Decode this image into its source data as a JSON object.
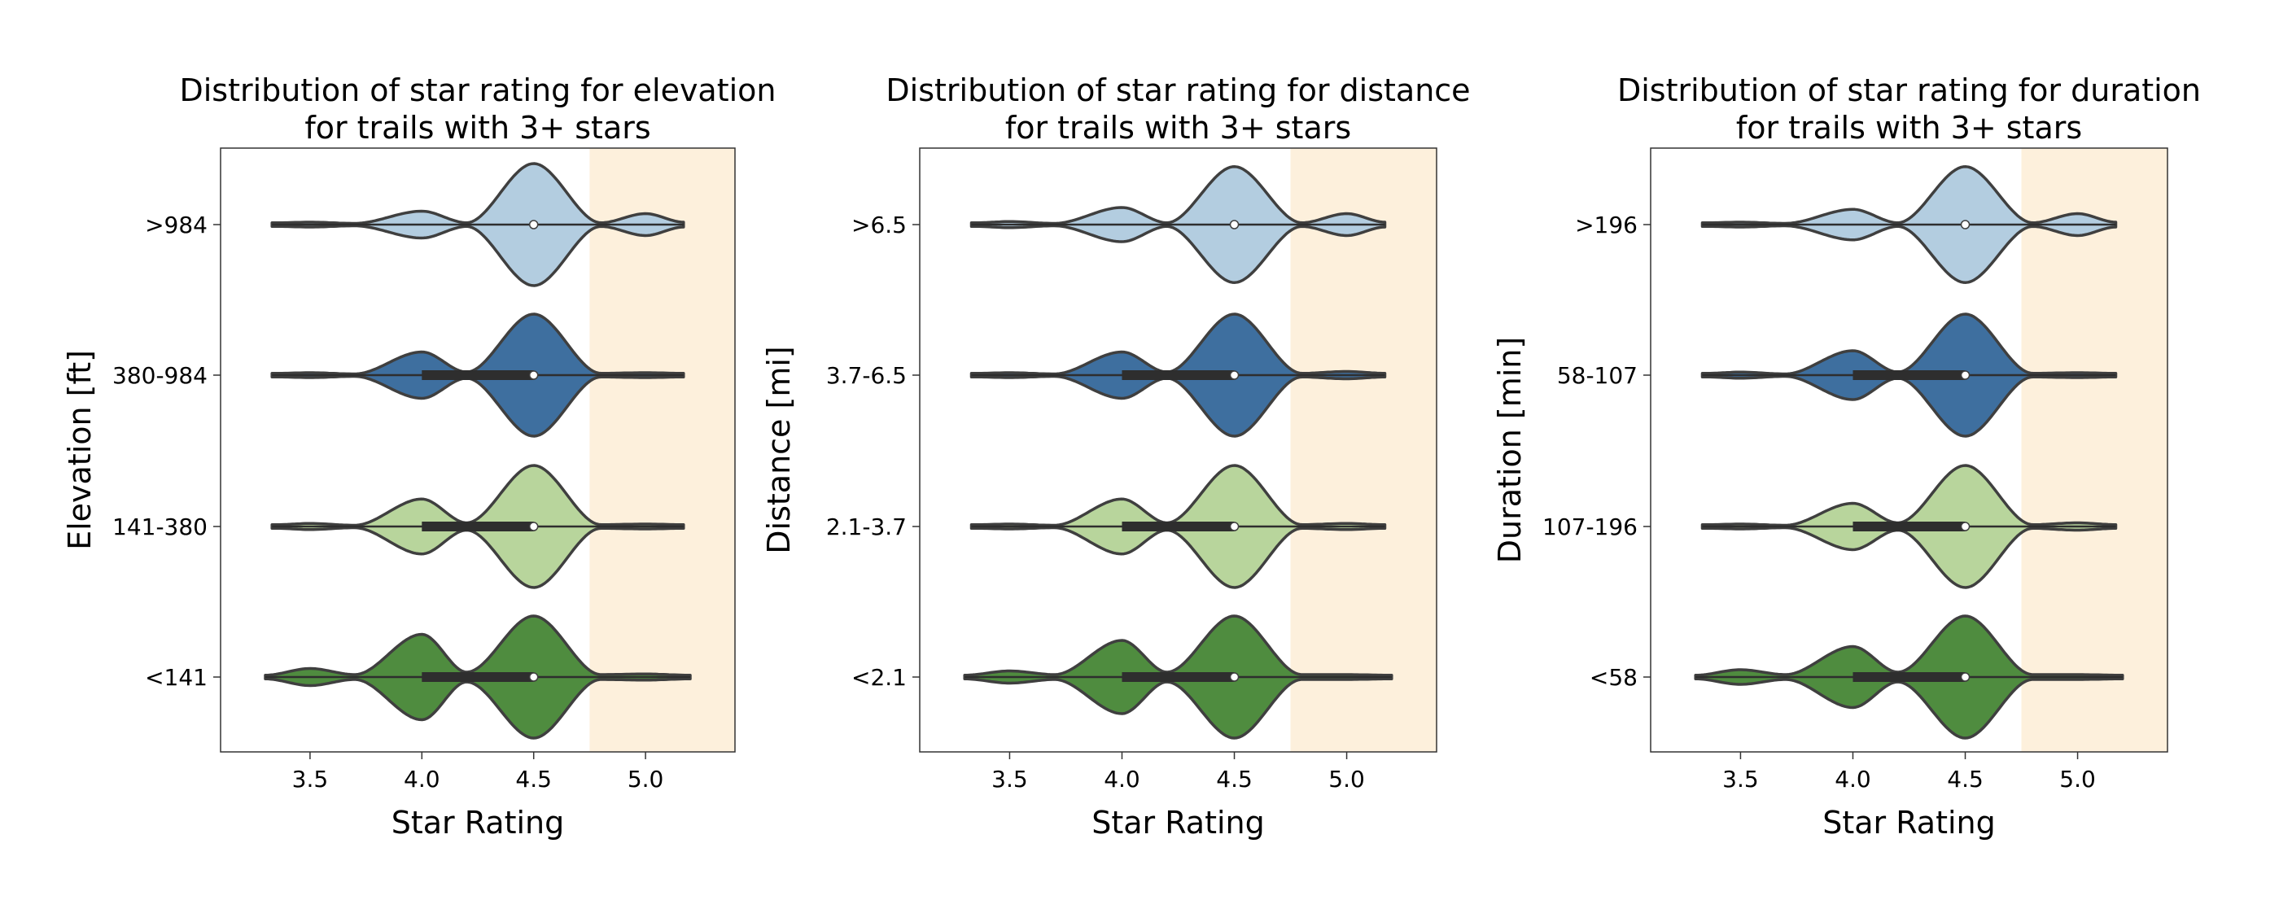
{
  "palette": {
    "group_colors": [
      "#b3cde0",
      "#3e6f9f",
      "#b8d59c",
      "#4f8c3f"
    ],
    "highlight": "#fdf0dc",
    "outline": "#3f3f3f",
    "box": "#2e2e2e",
    "median": "#ffffff"
  },
  "chart_data": [
    {
      "type": "violin",
      "title": [
        "Distribution of star rating for elevation",
        "for trails with 3+ stars"
      ],
      "xlabel": "Star Rating",
      "ylabel": "Elevation [ft]",
      "xlim": [
        3.1,
        5.4
      ],
      "xticks": [
        "3.5",
        "4.0",
        "4.5",
        "5.0"
      ],
      "highlight_from": 4.75,
      "categories": [
        ">984",
        "380-984",
        "141-380",
        "<141"
      ],
      "series": [
        {
          "category": ">984",
          "min": 3.33,
          "max": 5.17,
          "q1": 4.5,
          "median": 4.5,
          "q3": 4.5,
          "density": [
            [
              3.35,
              0.03
            ],
            [
              3.5,
              0.04
            ],
            [
              3.7,
              0.02
            ],
            [
              4.0,
              0.22
            ],
            [
              4.2,
              0.03
            ],
            [
              4.5,
              1.0
            ],
            [
              4.8,
              0.03
            ],
            [
              5.0,
              0.18
            ],
            [
              5.17,
              0.04
            ]
          ]
        },
        {
          "category": "380-984",
          "min": 3.33,
          "max": 5.17,
          "q1": 4.0,
          "median": 4.5,
          "q3": 4.5,
          "density": [
            [
              3.35,
              0.03
            ],
            [
              3.5,
              0.04
            ],
            [
              3.7,
              0.02
            ],
            [
              4.0,
              0.38
            ],
            [
              4.2,
              0.05
            ],
            [
              4.5,
              1.0
            ],
            [
              4.8,
              0.03
            ],
            [
              5.0,
              0.04
            ],
            [
              5.17,
              0.03
            ]
          ]
        },
        {
          "category": "141-380",
          "min": 3.33,
          "max": 5.17,
          "q1": 4.0,
          "median": 4.5,
          "q3": 4.5,
          "density": [
            [
              3.35,
              0.03
            ],
            [
              3.5,
              0.05
            ],
            [
              3.7,
              0.02
            ],
            [
              4.0,
              0.45
            ],
            [
              4.2,
              0.06
            ],
            [
              4.5,
              1.0
            ],
            [
              4.8,
              0.03
            ],
            [
              5.0,
              0.04
            ],
            [
              5.17,
              0.03
            ]
          ]
        },
        {
          "category": "<141",
          "min": 3.3,
          "max": 5.2,
          "q1": 4.0,
          "median": 4.5,
          "q3": 4.5,
          "density": [
            [
              3.3,
              0.03
            ],
            [
              3.5,
              0.14
            ],
            [
              3.7,
              0.04
            ],
            [
              4.0,
              0.7
            ],
            [
              4.2,
              0.08
            ],
            [
              4.5,
              1.0
            ],
            [
              4.8,
              0.04
            ],
            [
              5.0,
              0.05
            ],
            [
              5.2,
              0.03
            ]
          ]
        }
      ]
    },
    {
      "type": "violin",
      "title": [
        "Distribution of star rating for distance",
        "for trails with 3+ stars"
      ],
      "xlabel": "Star Rating",
      "ylabel": "Distance [mi]",
      "xlim": [
        3.1,
        5.4
      ],
      "xticks": [
        "3.5",
        "4.0",
        "4.5",
        "5.0"
      ],
      "highlight_from": 4.75,
      "categories": [
        ">6.5",
        "3.7-6.5",
        "2.1-3.7",
        "<2.1"
      ],
      "series": [
        {
          "category": ">6.5",
          "min": 3.33,
          "max": 5.17,
          "q1": 4.5,
          "median": 4.5,
          "q3": 4.5,
          "density": [
            [
              3.35,
              0.03
            ],
            [
              3.5,
              0.05
            ],
            [
              3.7,
              0.02
            ],
            [
              4.0,
              0.28
            ],
            [
              4.2,
              0.03
            ],
            [
              4.5,
              0.95
            ],
            [
              4.8,
              0.03
            ],
            [
              5.0,
              0.18
            ],
            [
              5.17,
              0.04
            ]
          ]
        },
        {
          "category": "3.7-6.5",
          "min": 3.33,
          "max": 5.17,
          "q1": 4.0,
          "median": 4.5,
          "q3": 4.5,
          "density": [
            [
              3.35,
              0.03
            ],
            [
              3.5,
              0.04
            ],
            [
              3.7,
              0.02
            ],
            [
              4.0,
              0.38
            ],
            [
              4.2,
              0.05
            ],
            [
              4.5,
              1.0
            ],
            [
              4.8,
              0.03
            ],
            [
              5.0,
              0.06
            ],
            [
              5.17,
              0.03
            ]
          ]
        },
        {
          "category": "2.1-3.7",
          "min": 3.33,
          "max": 5.17,
          "q1": 4.0,
          "median": 4.5,
          "q3": 4.5,
          "density": [
            [
              3.35,
              0.03
            ],
            [
              3.5,
              0.04
            ],
            [
              3.7,
              0.02
            ],
            [
              4.0,
              0.45
            ],
            [
              4.2,
              0.06
            ],
            [
              4.5,
              1.0
            ],
            [
              4.8,
              0.03
            ],
            [
              5.0,
              0.05
            ],
            [
              5.17,
              0.03
            ]
          ]
        },
        {
          "category": "<2.1",
          "min": 3.3,
          "max": 5.2,
          "q1": 4.0,
          "median": 4.5,
          "q3": 4.5,
          "density": [
            [
              3.3,
              0.03
            ],
            [
              3.5,
              0.1
            ],
            [
              3.7,
              0.04
            ],
            [
              4.0,
              0.6
            ],
            [
              4.2,
              0.08
            ],
            [
              4.5,
              1.0
            ],
            [
              4.8,
              0.04
            ],
            [
              5.0,
              0.04
            ],
            [
              5.2,
              0.03
            ]
          ]
        }
      ]
    },
    {
      "type": "violin",
      "title": [
        "Distribution of star rating for duration",
        "for trails with 3+ stars"
      ],
      "xlabel": "Star Rating",
      "ylabel": "Duration [min]",
      "xlim": [
        3.1,
        5.4
      ],
      "xticks": [
        "3.5",
        "4.0",
        "4.5",
        "5.0"
      ],
      "highlight_from": 4.75,
      "categories": [
        ">196",
        "58-107",
        "107-196",
        "<58"
      ],
      "series": [
        {
          "category": ">196",
          "min": 3.33,
          "max": 5.17,
          "q1": 4.5,
          "median": 4.5,
          "q3": 4.5,
          "density": [
            [
              3.35,
              0.03
            ],
            [
              3.5,
              0.04
            ],
            [
              3.7,
              0.02
            ],
            [
              4.0,
              0.25
            ],
            [
              4.2,
              0.03
            ],
            [
              4.5,
              0.95
            ],
            [
              4.8,
              0.03
            ],
            [
              5.0,
              0.18
            ],
            [
              5.17,
              0.04
            ]
          ]
        },
        {
          "category": "58-107",
          "min": 3.33,
          "max": 5.17,
          "q1": 4.0,
          "median": 4.5,
          "q3": 4.5,
          "density": [
            [
              3.35,
              0.03
            ],
            [
              3.5,
              0.05
            ],
            [
              3.7,
              0.02
            ],
            [
              4.0,
              0.4
            ],
            [
              4.2,
              0.05
            ],
            [
              4.5,
              1.0
            ],
            [
              4.8,
              0.03
            ],
            [
              5.0,
              0.04
            ],
            [
              5.17,
              0.03
            ]
          ]
        },
        {
          "category": "107-196",
          "min": 3.33,
          "max": 5.17,
          "q1": 4.0,
          "median": 4.5,
          "q3": 4.5,
          "density": [
            [
              3.35,
              0.03
            ],
            [
              3.5,
              0.04
            ],
            [
              3.7,
              0.02
            ],
            [
              4.0,
              0.38
            ],
            [
              4.2,
              0.06
            ],
            [
              4.5,
              1.0
            ],
            [
              4.8,
              0.03
            ],
            [
              5.0,
              0.06
            ],
            [
              5.17,
              0.03
            ]
          ]
        },
        {
          "category": "<58",
          "min": 3.3,
          "max": 5.2,
          "q1": 4.0,
          "median": 4.5,
          "q3": 4.5,
          "density": [
            [
              3.3,
              0.03
            ],
            [
              3.5,
              0.12
            ],
            [
              3.7,
              0.04
            ],
            [
              4.0,
              0.5
            ],
            [
              4.2,
              0.08
            ],
            [
              4.5,
              1.0
            ],
            [
              4.8,
              0.04
            ],
            [
              5.0,
              0.04
            ],
            [
              5.2,
              0.03
            ]
          ]
        }
      ]
    }
  ]
}
